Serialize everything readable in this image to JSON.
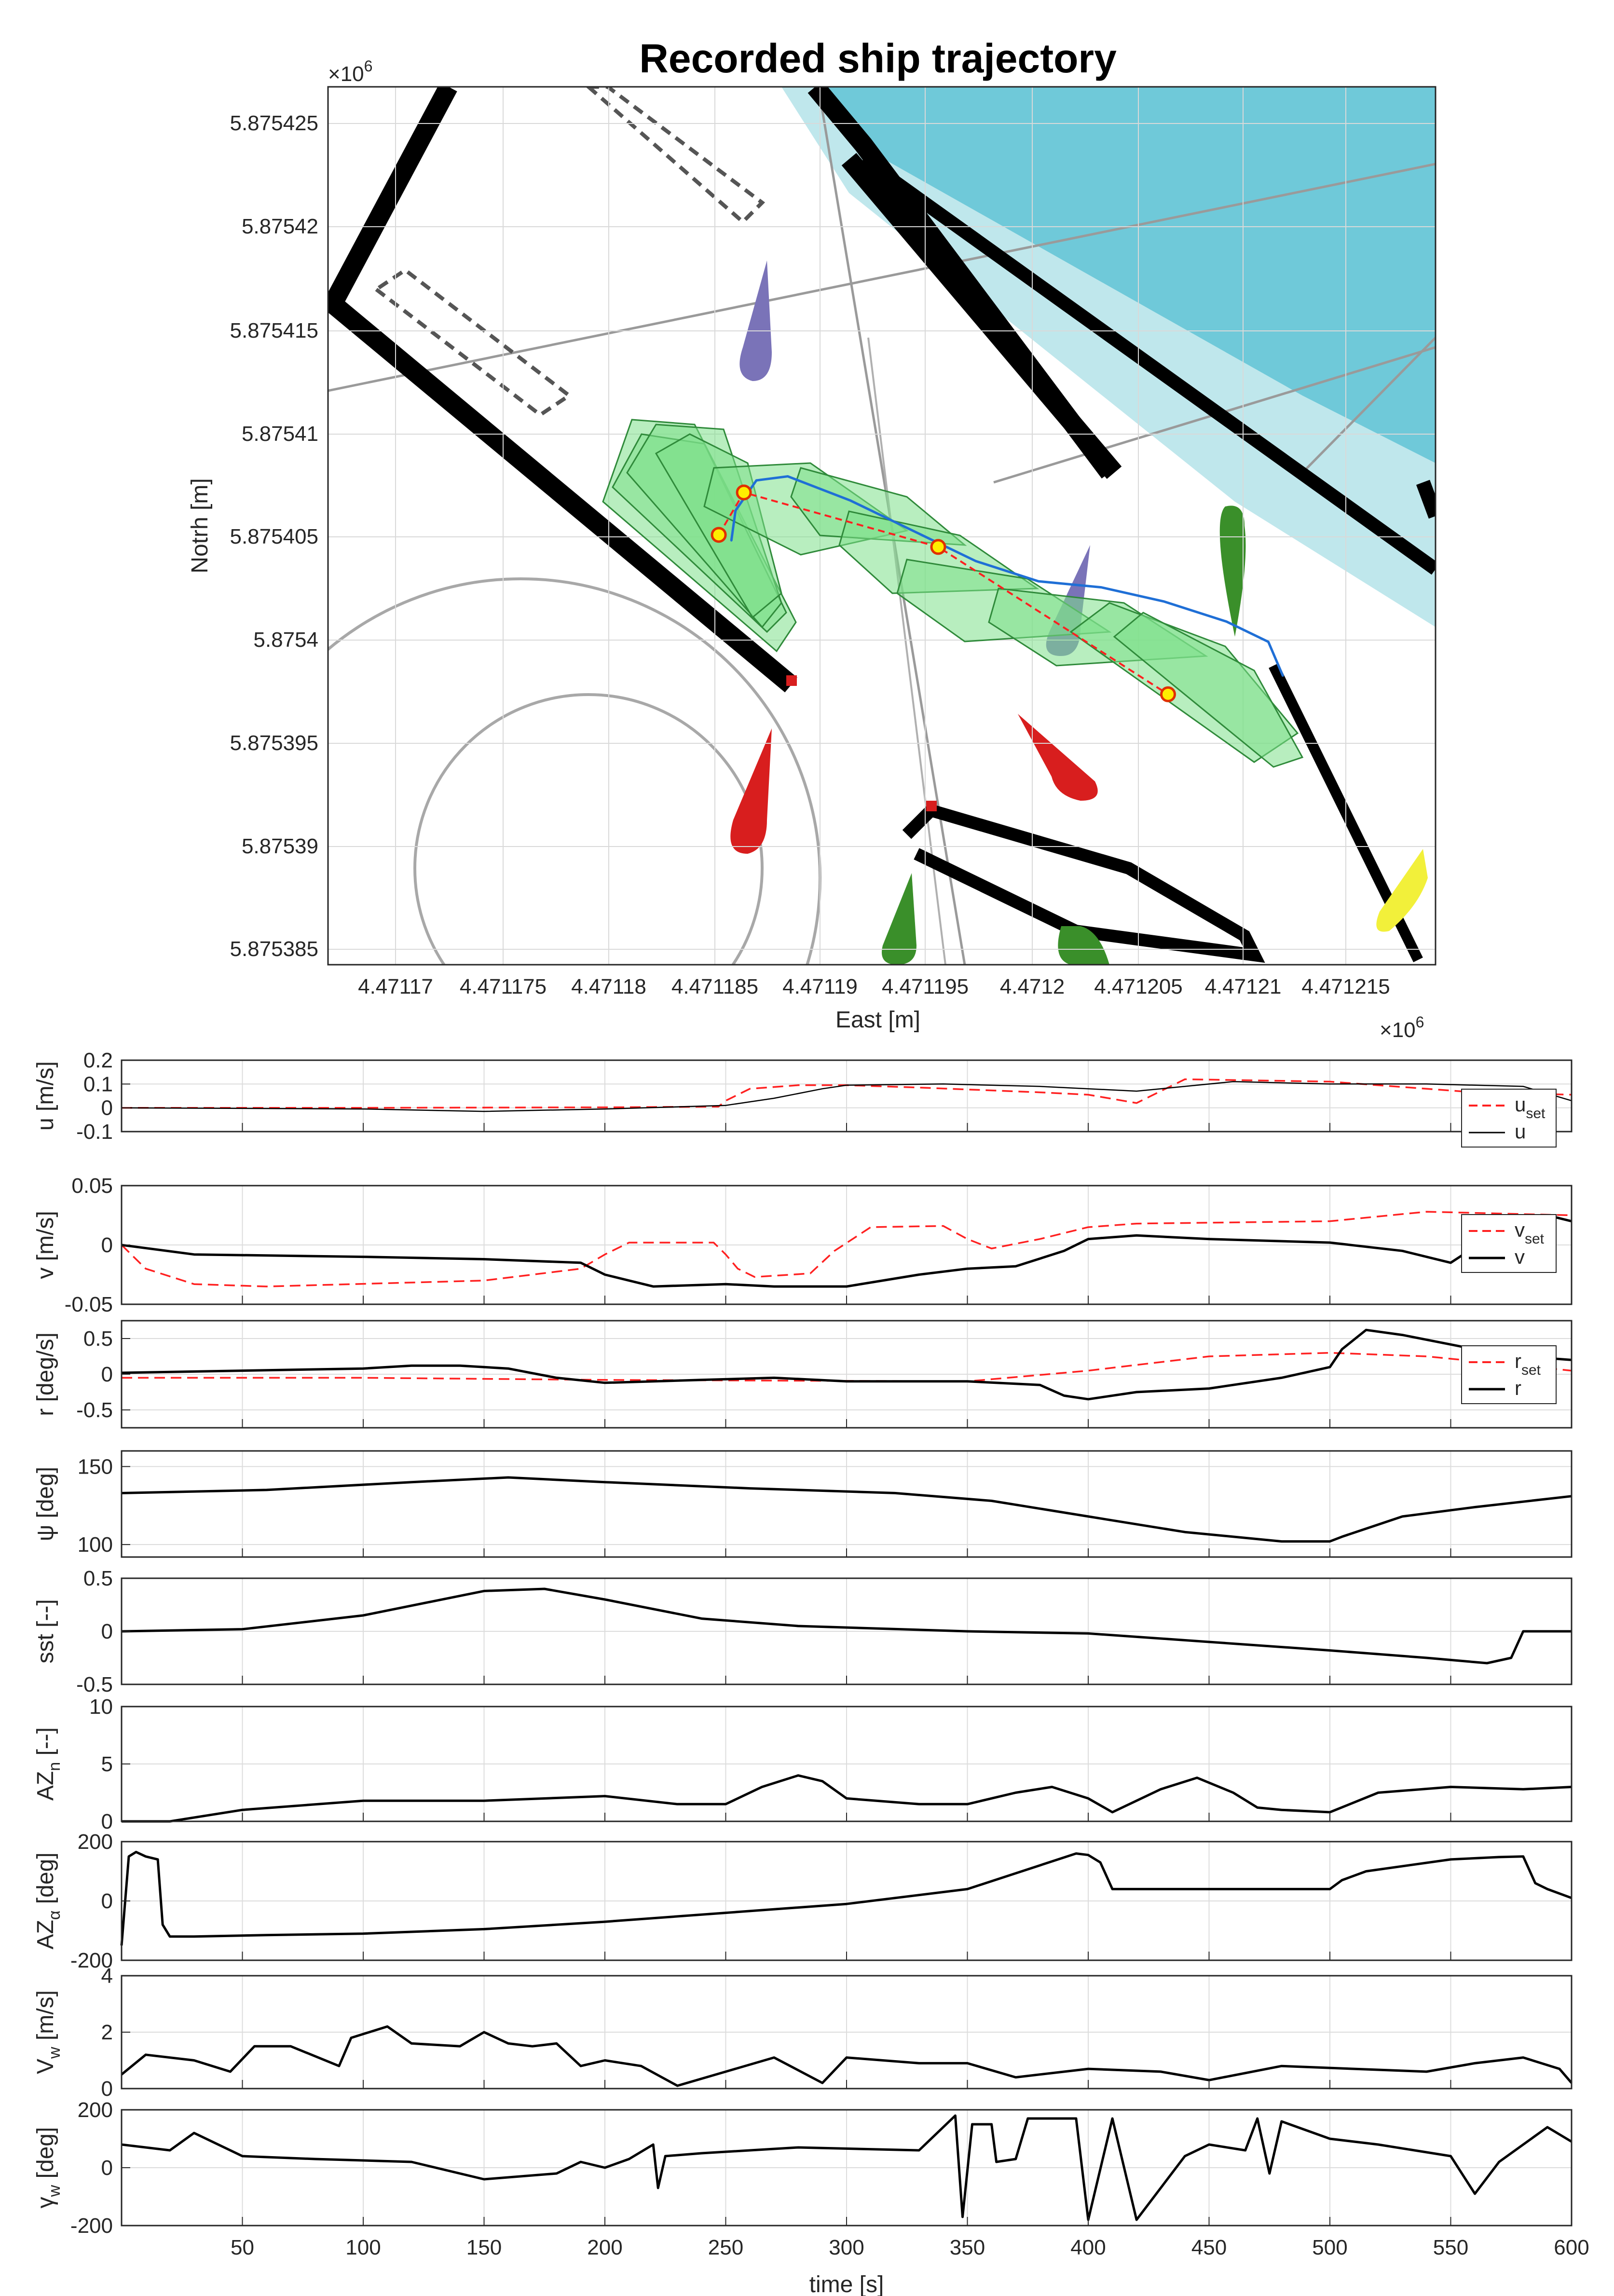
{
  "colors": {
    "axis": "#262626",
    "grid": "#dcdcdc",
    "measured": "#000000",
    "setpoint": "#ff2020",
    "trajectory": "#1f6fd6",
    "waypoint_fill": "#ffee00",
    "waypoint_edge": "#e03000",
    "footprint_fill": "#7ee08a",
    "footprint_edge": "#2f8a3a",
    "water": "#6fc9d9",
    "water_light": "#bfe7ec",
    "buoy_red": "#d81e1e",
    "buoy_green": "#3a8f2a",
    "buoy_purple": "#7a73b8",
    "buoy_yellow": "#f2f03a"
  },
  "trajectory_plot": {
    "title": "Recorded ship trajectory",
    "xlabel": "East [m]",
    "ylabel": "Notrh [m]",
    "x_exponent": "×10",
    "x_exponent_power": "6",
    "y_exponent": "×10",
    "y_exponent_power": "6",
    "x_ticks": [
      "4.47117",
      "4.471175",
      "4.47118",
      "4.471185",
      "4.47119",
      "4.471195",
      "4.4712",
      "4.471205",
      "4.47121",
      "4.471215"
    ],
    "y_ticks": [
      "5.875425",
      "5.87542",
      "5.875415",
      "5.87541",
      "5.875405",
      "5.8754",
      "5.875395",
      "5.87539",
      "5.875385"
    ]
  },
  "chart_data": [
    {
      "type": "scatter",
      "title": "Recorded ship trajectory",
      "xlabel": "East [m]",
      "ylabel": "Notrh [m]",
      "xlim": [
        4471166,
        4471219
      ],
      "ylim": [
        5875383.5,
        5875427
      ],
      "series": [
        {
          "values": [
            [
              4471185.3,
              5875404.5
            ],
            [
              4471185.5,
              5875406
            ],
            [
              4471186.5,
              5875407.5
            ],
            [
              4471188,
              5875407.7
            ],
            [
              4471191,
              5875406.5
            ],
            [
              4471194,
              5875405
            ],
            [
              4471197,
              5875403.5
            ],
            [
              4471200,
              5875402.5
            ],
            [
              4471203,
              5875402.2
            ],
            [
              4471206,
              5875401.5
            ],
            [
              4471209,
              5875400.5
            ],
            [
              4471211,
              5875399.5
            ],
            [
              4471211.7,
              5875397.8
            ]
          ]
        },
        {
          "values": [
            [
              4471184.7,
              5875404.8
            ],
            [
              4471185.9,
              5875406.9
            ],
            [
              4471195.2,
              5875404.2
            ],
            [
              4471206.2,
              5875396.9
            ]
          ]
        }
      ]
    },
    {
      "type": "line",
      "ylabel": "u [m/s]",
      "xlim": [
        0,
        600
      ],
      "ylim": [
        -0.1,
        0.2
      ],
      "yticks": [
        "0.2",
        "0.1",
        "0",
        "-0.1"
      ],
      "legend": "right",
      "series": [
        {
          "name": "u_set",
          "x": [
            0,
            100,
            200,
            247,
            250,
            260,
            280,
            300,
            330,
            380,
            400,
            420,
            440,
            500,
            560,
            600
          ],
          "values": [
            0,
            0,
            0.002,
            0.005,
            0.03,
            0.08,
            0.095,
            0.095,
            0.085,
            0.065,
            0.055,
            0.02,
            0.12,
            0.11,
            0.065,
            0.055
          ]
        },
        {
          "name": "u",
          "x": [
            0,
            100,
            150,
            200,
            250,
            270,
            290,
            300,
            340,
            380,
            420,
            440,
            460,
            500,
            540,
            580,
            600
          ],
          "values": [
            0,
            -0.005,
            -0.015,
            -0.005,
            0.01,
            0.04,
            0.08,
            0.095,
            0.1,
            0.09,
            0.07,
            0.09,
            0.11,
            0.1,
            0.1,
            0.09,
            0.03
          ]
        }
      ]
    },
    {
      "type": "line",
      "ylabel": "v [m/s]",
      "xlim": [
        0,
        600
      ],
      "ylim": [
        -0.05,
        0.05
      ],
      "yticks": [
        "0.05",
        "0",
        "-0.05"
      ],
      "legend": "right",
      "series": [
        {
          "name": "v_set",
          "x": [
            0,
            10,
            30,
            60,
            150,
            190,
            200,
            210,
            245,
            250,
            255,
            262,
            285,
            295,
            310,
            340,
            350,
            360,
            380,
            400,
            420,
            500,
            540,
            600
          ],
          "values": [
            0,
            -0.02,
            -0.033,
            -0.035,
            -0.03,
            -0.02,
            -0.008,
            0.002,
            0.002,
            -0.008,
            -0.02,
            -0.027,
            -0.024,
            -0.005,
            0.015,
            0.016,
            0.005,
            -0.003,
            0.005,
            0.015,
            0.018,
            0.02,
            0.028,
            0.025
          ]
        },
        {
          "name": "v",
          "x": [
            0,
            30,
            100,
            150,
            190,
            200,
            220,
            250,
            270,
            300,
            330,
            350,
            370,
            390,
            400,
            420,
            450,
            500,
            530,
            550,
            565,
            580,
            590,
            600
          ],
          "values": [
            0,
            -0.008,
            -0.01,
            -0.012,
            -0.015,
            -0.025,
            -0.035,
            -0.033,
            -0.035,
            -0.035,
            -0.025,
            -0.02,
            -0.018,
            -0.005,
            0.005,
            0.008,
            0.005,
            0.002,
            -0.005,
            -0.015,
            0.005,
            0.025,
            0.025,
            0.02
          ]
        }
      ]
    },
    {
      "type": "line",
      "ylabel": "r [deg/s]",
      "xlim": [
        0,
        600
      ],
      "ylim": [
        -0.75,
        0.75
      ],
      "yticks": [
        "0.5",
        "0",
        "-0.5"
      ],
      "legend": "right",
      "series": [
        {
          "name": "r_set",
          "x": [
            0,
            100,
            200,
            350,
            400,
            450,
            500,
            540,
            600
          ],
          "values": [
            -0.05,
            -0.05,
            -0.08,
            -0.1,
            0.05,
            0.25,
            0.3,
            0.25,
            0.05
          ]
        },
        {
          "name": "r",
          "x": [
            0,
            50,
            100,
            120,
            140,
            160,
            180,
            200,
            240,
            270,
            300,
            330,
            350,
            380,
            390,
            400,
            420,
            450,
            480,
            500,
            505,
            515,
            530,
            560,
            580,
            600
          ],
          "values": [
            0.02,
            0.05,
            0.08,
            0.12,
            0.12,
            0.08,
            -0.05,
            -0.12,
            -0.08,
            -0.05,
            -0.1,
            -0.1,
            -0.1,
            -0.15,
            -0.3,
            -0.35,
            -0.25,
            -0.2,
            -0.05,
            0.1,
            0.35,
            0.62,
            0.55,
            0.35,
            0.25,
            0.2
          ]
        }
      ]
    },
    {
      "type": "line",
      "ylabel": "ψ [deg]",
      "xlim": [
        0,
        600
      ],
      "ylim": [
        92,
        160
      ],
      "yticks": [
        "150",
        "100"
      ],
      "series": [
        {
          "x": [
            0,
            60,
            120,
            160,
            200,
            260,
            320,
            360,
            400,
            440,
            480,
            500,
            505,
            530,
            560,
            600
          ],
          "values": [
            133,
            135,
            140,
            143,
            140,
            136,
            133,
            128,
            118,
            108,
            102,
            102,
            105,
            118,
            124,
            131
          ]
        }
      ]
    },
    {
      "type": "line",
      "ylabel": "sst [--]",
      "xlim": [
        0,
        600
      ],
      "ylim": [
        -0.5,
        0.5
      ],
      "yticks": [
        "0.5",
        "0",
        "-0.5"
      ],
      "series": [
        {
          "x": [
            0,
            50,
            100,
            150,
            175,
            200,
            240,
            280,
            350,
            400,
            450,
            500,
            540,
            565,
            575,
            580,
            600
          ],
          "values": [
            0,
            0.02,
            0.15,
            0.38,
            0.4,
            0.3,
            0.12,
            0.05,
            0,
            -0.02,
            -0.1,
            -0.18,
            -0.25,
            -0.3,
            -0.25,
            0,
            0
          ]
        }
      ]
    },
    {
      "type": "line",
      "ylabel": "AZ_n [--]",
      "xlim": [
        0,
        600
      ],
      "ylim": [
        0,
        10
      ],
      "yticks": [
        "10",
        "5",
        "0"
      ],
      "series": [
        {
          "x": [
            0,
            20,
            50,
            100,
            150,
            200,
            230,
            250,
            265,
            280,
            290,
            300,
            330,
            350,
            370,
            385,
            400,
            410,
            430,
            445,
            460,
            470,
            480,
            500,
            520,
            550,
            580,
            600
          ],
          "values": [
            0,
            0,
            1,
            1.8,
            1.8,
            2.2,
            1.5,
            1.5,
            3,
            4,
            3.5,
            2,
            1.5,
            1.5,
            2.5,
            3,
            2,
            0.8,
            2.8,
            3.8,
            2.5,
            1.2,
            1,
            0.8,
            2.5,
            3,
            2.8,
            3
          ]
        }
      ]
    },
    {
      "type": "line",
      "ylabel": "AZ_α [deg]",
      "xlim": [
        0,
        600
      ],
      "ylim": [
        -200,
        200
      ],
      "yticks": [
        "200",
        "0",
        "-200"
      ],
      "series": [
        {
          "x": [
            0,
            3,
            6,
            10,
            15,
            17,
            20,
            30,
            60,
            100,
            150,
            200,
            250,
            300,
            350,
            380,
            395,
            400,
            405,
            410,
            500,
            505,
            515,
            550,
            570,
            580,
            585,
            590,
            600
          ],
          "values": [
            -150,
            150,
            165,
            150,
            140,
            -80,
            -120,
            -120,
            -115,
            -110,
            -95,
            -70,
            -40,
            -10,
            40,
            120,
            160,
            155,
            130,
            40,
            40,
            70,
            100,
            140,
            148,
            150,
            60,
            40,
            10
          ]
        }
      ]
    },
    {
      "type": "line",
      "ylabel": "V_w [m/s]",
      "xlim": [
        0,
        600
      ],
      "ylim": [
        0,
        4
      ],
      "yticks": [
        "4",
        "2",
        "0"
      ],
      "series": [
        {
          "x": [
            0,
            10,
            30,
            45,
            55,
            70,
            90,
            95,
            110,
            120,
            140,
            150,
            160,
            170,
            180,
            190,
            200,
            215,
            230,
            250,
            270,
            290,
            300,
            330,
            350,
            370,
            400,
            430,
            450,
            480,
            510,
            540,
            560,
            580,
            595,
            600
          ],
          "values": [
            0.5,
            1.2,
            1,
            0.6,
            1.5,
            1.5,
            0.8,
            1.8,
            2.2,
            1.6,
            1.5,
            2,
            1.6,
            1.5,
            1.6,
            0.8,
            1,
            0.8,
            0.1,
            0.6,
            1.1,
            0.2,
            1.1,
            0.9,
            0.9,
            0.4,
            0.7,
            0.6,
            0.3,
            0.8,
            0.7,
            0.6,
            0.9,
            1.1,
            0.7,
            0.2
          ]
        }
      ]
    },
    {
      "type": "line",
      "ylabel": "γ_w [deg]",
      "xlim": [
        0,
        600
      ],
      "ylim": [
        -200,
        200
      ],
      "yticks": [
        "200",
        "0",
        "-200"
      ],
      "series": [
        {
          "x": [
            0,
            20,
            30,
            50,
            80,
            120,
            150,
            180,
            190,
            200,
            210,
            220,
            222,
            225,
            240,
            280,
            330,
            345,
            348,
            352,
            360,
            362,
            370,
            375,
            385,
            395,
            400,
            410,
            420,
            440,
            450,
            465,
            470,
            475,
            480,
            500,
            520,
            550,
            560,
            570,
            590,
            600
          ],
          "values": [
            80,
            60,
            120,
            40,
            30,
            20,
            -40,
            -20,
            20,
            0,
            30,
            80,
            -70,
            40,
            50,
            70,
            60,
            180,
            -170,
            150,
            150,
            20,
            30,
            170,
            170,
            170,
            -180,
            170,
            -180,
            40,
            80,
            60,
            170,
            -20,
            160,
            100,
            80,
            40,
            -90,
            20,
            140,
            90
          ]
        }
      ]
    }
  ],
  "time_axis": {
    "xlabel": "time [s]",
    "ticks": [
      "50",
      "100",
      "150",
      "200",
      "250",
      "300",
      "350",
      "400",
      "450",
      "500",
      "550",
      "600"
    ]
  },
  "legends": {
    "u_set_main": "u",
    "u_set_sub": "set",
    "u": "u",
    "v_set_main": "v",
    "v_set_sub": "set",
    "v": "v",
    "r_set_main": "r",
    "r_set_sub": "set",
    "r": "r"
  }
}
